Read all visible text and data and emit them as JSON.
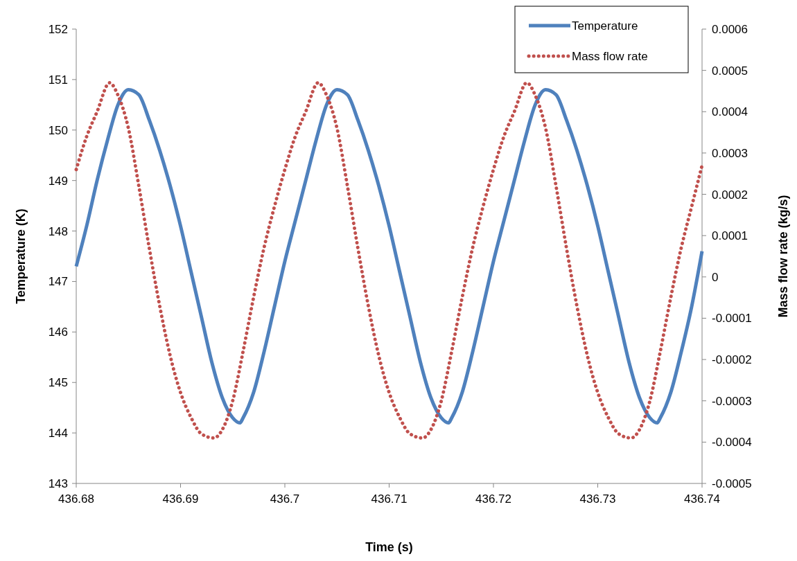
{
  "chart_data": {
    "type": "line",
    "xlabel": "Time (s)",
    "ylabel": "Temperature (K)",
    "y2label": "Mass flow rate (kg/s)",
    "xlim": [
      436.68,
      436.74
    ],
    "xticks": [
      436.68,
      436.69,
      436.7,
      436.71,
      436.72,
      436.73,
      436.74
    ],
    "ylim": [
      143,
      152
    ],
    "yticks": [
      143,
      144,
      145,
      146,
      147,
      148,
      149,
      150,
      151,
      152
    ],
    "y2lim": [
      -0.0005,
      0.0006
    ],
    "y2ticks": [
      -0.0005,
      -0.0004,
      -0.0003,
      -0.0002,
      -0.0001,
      0,
      0.0001,
      0.0002,
      0.0003,
      0.0004,
      0.0005,
      0.0006
    ],
    "grid": false,
    "legend": "top right",
    "marker": "none",
    "series": [
      {
        "name": "Temperature",
        "color": "#4f81bd",
        "line_style": "solid",
        "x": [
          436.68,
          436.681,
          436.682,
          436.683,
          436.684,
          436.685,
          436.686,
          436.687,
          436.688,
          436.689,
          436.69,
          436.691,
          436.692,
          436.693,
          436.694,
          436.695,
          436.6957,
          436.696,
          436.697,
          436.698,
          436.699,
          436.7,
          436.701,
          436.702,
          436.703,
          436.704,
          436.705,
          436.706,
          436.707,
          436.708,
          436.709,
          436.71,
          436.711,
          436.712,
          436.713,
          436.714,
          436.715,
          436.7157,
          436.716,
          436.717,
          436.718,
          436.719,
          436.72,
          436.721,
          436.722,
          436.723,
          436.724,
          436.725,
          436.726,
          436.727,
          436.728,
          436.729,
          436.73,
          436.731,
          436.732,
          436.733,
          436.734,
          436.735,
          436.7357,
          436.736,
          436.737,
          436.738,
          436.739,
          436.74
        ],
        "values": [
          147.3,
          148.1,
          149.0,
          149.8,
          150.5,
          150.8,
          150.7,
          150.2,
          149.6,
          148.9,
          148.1,
          147.2,
          146.3,
          145.4,
          144.7,
          144.3,
          144.2,
          144.3,
          144.8,
          145.6,
          146.5,
          147.4,
          148.2,
          149.0,
          149.8,
          150.5,
          150.8,
          150.7,
          150.2,
          149.6,
          148.9,
          148.1,
          147.2,
          146.3,
          145.4,
          144.7,
          144.3,
          144.2,
          144.3,
          144.8,
          145.6,
          146.5,
          147.4,
          148.2,
          149.0,
          149.8,
          150.5,
          150.8,
          150.7,
          150.2,
          149.6,
          148.9,
          148.1,
          147.2,
          146.3,
          145.4,
          144.7,
          144.3,
          144.2,
          144.3,
          144.8,
          145.6,
          146.5,
          147.6
        ]
      },
      {
        "name": "Mass flow rate",
        "color": "#c0504d",
        "line_style": "dotted",
        "axis": "y2",
        "x": [
          436.68,
          436.681,
          436.682,
          436.6832,
          436.684,
          436.685,
          436.686,
          436.687,
          436.688,
          436.689,
          436.69,
          436.691,
          436.692,
          436.6932,
          436.694,
          436.695,
          436.696,
          436.697,
          436.698,
          436.699,
          436.7,
          436.701,
          436.702,
          436.7032,
          436.704,
          436.705,
          436.706,
          436.707,
          436.708,
          436.709,
          436.71,
          436.711,
          436.712,
          436.7132,
          436.714,
          436.715,
          436.716,
          436.717,
          436.718,
          436.719,
          436.72,
          436.721,
          436.722,
          436.7232,
          436.724,
          436.725,
          436.726,
          436.727,
          436.728,
          436.729,
          436.73,
          436.731,
          436.732,
          436.7332,
          436.734,
          436.735,
          436.736,
          436.737,
          436.738,
          436.739,
          436.74
        ],
        "values": [
          0.00026,
          0.00034,
          0.0004,
          0.00047,
          0.00044,
          0.00036,
          0.00022,
          7e-05,
          -7e-05,
          -0.00019,
          -0.00028,
          -0.00034,
          -0.00038,
          -0.00039,
          -0.00037,
          -0.0003,
          -0.00018,
          -5e-05,
          7e-05,
          0.00017,
          0.00026,
          0.00034,
          0.0004,
          0.00047,
          0.00044,
          0.00036,
          0.00022,
          7e-05,
          -7e-05,
          -0.00019,
          -0.00028,
          -0.00034,
          -0.00038,
          -0.00039,
          -0.00037,
          -0.0003,
          -0.00018,
          -5e-05,
          7e-05,
          0.00017,
          0.00026,
          0.00034,
          0.0004,
          0.00047,
          0.00044,
          0.00036,
          0.00022,
          7e-05,
          -7e-05,
          -0.00019,
          -0.00028,
          -0.00034,
          -0.00038,
          -0.00039,
          -0.00037,
          -0.0003,
          -0.00018,
          -5e-05,
          7e-05,
          0.00017,
          0.00027
        ]
      }
    ]
  }
}
